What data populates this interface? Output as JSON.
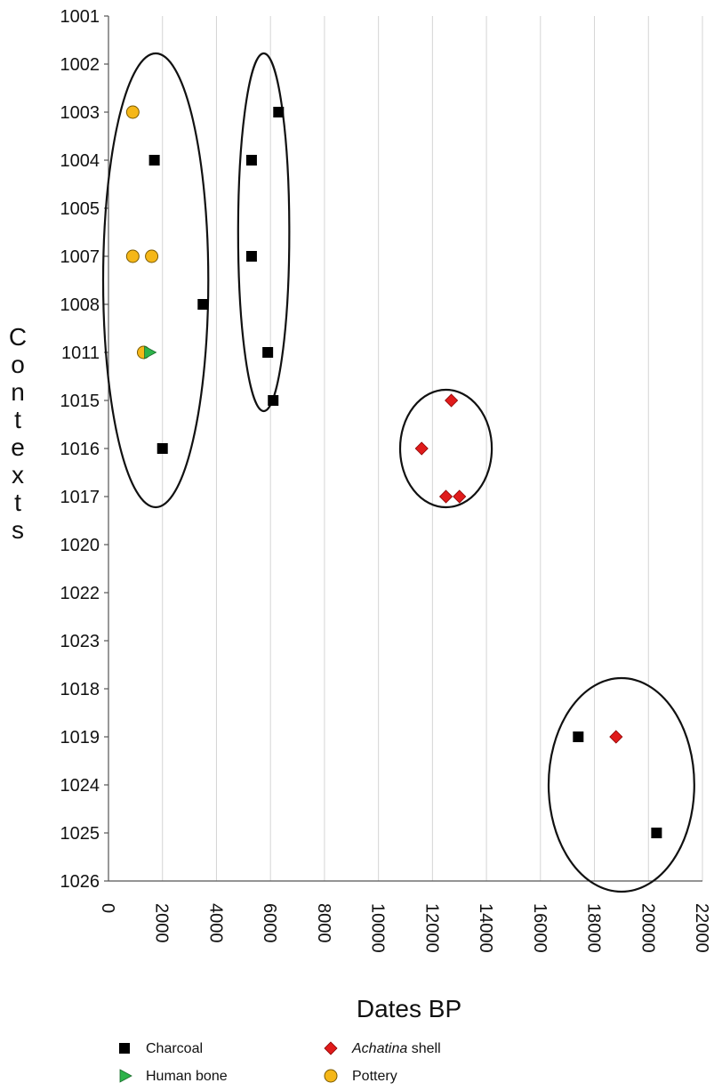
{
  "chart_data": {
    "type": "scatter",
    "title": "",
    "xlabel": "Dates BP",
    "ylabel": "Contexts",
    "xlim": [
      0,
      22000
    ],
    "x_ticks": [
      0,
      2000,
      4000,
      6000,
      8000,
      10000,
      12000,
      14000,
      16000,
      18000,
      20000,
      22000
    ],
    "x_tick_labels": [
      "0",
      "2000",
      "4000",
      "6000",
      "8000",
      "10000",
      "12000",
      "14000",
      "16000",
      "18000",
      "20000",
      "22000"
    ],
    "y_categories": [
      "1001",
      "1002",
      "1003",
      "1004",
      "1005",
      "1007",
      "1008",
      "1011",
      "1015",
      "1016",
      "1017",
      "1020",
      "1022",
      "1023",
      "1018",
      "1019",
      "1024",
      "1025",
      "1026"
    ],
    "grid": "vertical",
    "legend_position": "bottom",
    "legend": [
      {
        "key": "charcoal",
        "label": "Charcoal",
        "label_suffix": "",
        "italic": false,
        "marker": "square",
        "color": "#000000"
      },
      {
        "key": "human_bone",
        "label": "Human bone",
        "label_suffix": "",
        "italic": false,
        "marker": "triangle",
        "color": "#2db34a"
      },
      {
        "key": "achatina",
        "label": "Achatina",
        "label_suffix": " shell",
        "italic": true,
        "marker": "diamond",
        "color": "#e01b1b"
      },
      {
        "key": "pottery",
        "label": "Pottery",
        "label_suffix": "",
        "italic": false,
        "marker": "circle",
        "color": "#f5b718"
      }
    ],
    "series": [
      {
        "name": "Charcoal",
        "marker": "square",
        "color": "#000000",
        "points": [
          {
            "x": 1700,
            "y": "1004"
          },
          {
            "x": 2000,
            "y": "1016"
          },
          {
            "x": 3500,
            "y": "1008"
          },
          {
            "x": 6300,
            "y": "1003"
          },
          {
            "x": 5300,
            "y": "1004"
          },
          {
            "x": 5300,
            "y": "1007"
          },
          {
            "x": 5900,
            "y": "1011"
          },
          {
            "x": 6100,
            "y": "1015"
          },
          {
            "x": 17400,
            "y": "1019"
          },
          {
            "x": 20300,
            "y": "1025"
          }
        ]
      },
      {
        "name": "Human bone",
        "marker": "triangle",
        "color": "#2db34a",
        "points": [
          {
            "x": 1500,
            "y": "1011"
          }
        ]
      },
      {
        "name": "Achatina shell",
        "marker": "diamond",
        "color": "#e01b1b",
        "points": [
          {
            "x": 12700,
            "y": "1015"
          },
          {
            "x": 11600,
            "y": "1016"
          },
          {
            "x": 12500,
            "y": "1017"
          },
          {
            "x": 13000,
            "y": "1017"
          },
          {
            "x": 18800,
            "y": "1019"
          }
        ]
      },
      {
        "name": "Pottery",
        "marker": "circle",
        "color": "#f5b718",
        "points": [
          {
            "x": 900,
            "y": "1003"
          },
          {
            "x": 900,
            "y": "1007"
          },
          {
            "x": 1600,
            "y": "1007"
          },
          {
            "x": 1300,
            "y": "1011"
          }
        ]
      }
    ],
    "groupings": [
      {
        "members": [
          "1002-1017",
          "0-3500"
        ]
      },
      {
        "members": [
          "1002-1015",
          "5000-6500"
        ]
      },
      {
        "members": [
          "1015-1017",
          "11000-14000"
        ]
      },
      {
        "members": [
          "1018-1026",
          "16500-21500"
        ]
      }
    ]
  }
}
